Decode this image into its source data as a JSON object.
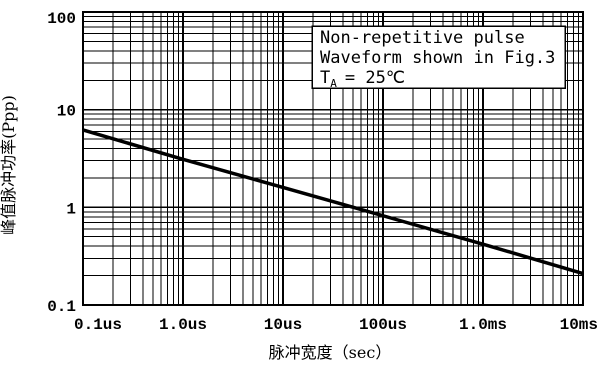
{
  "chart_data": {
    "type": "line",
    "x_scale": "log",
    "y_scale": "log",
    "xlabel": "脉冲宽度（sec）",
    "ylabel": "峰值脉冲功率(Ppp)",
    "xlim": [
      1e-07,
      0.01
    ],
    "ylim": [
      0.1,
      100
    ],
    "x_ticks": [
      {
        "value": 1e-07,
        "label": "0.1us"
      },
      {
        "value": 1e-06,
        "label": "1.0us"
      },
      {
        "value": 1e-05,
        "label": "10us"
      },
      {
        "value": 0.0001,
        "label": "100us"
      },
      {
        "value": 0.001,
        "label": "1.0ms"
      },
      {
        "value": 0.01,
        "label": "10ms"
      }
    ],
    "y_ticks": [
      {
        "value": 0.1,
        "label": "0.1"
      },
      {
        "value": 1,
        "label": "1"
      },
      {
        "value": 10,
        "label": "10"
      },
      {
        "value": 100,
        "label": "100"
      }
    ],
    "grid": true,
    "minor_grid": true,
    "series": [
      {
        "x": [
          1e-07,
          1e-06,
          1e-05,
          0.0001,
          0.001,
          0.01
        ],
        "y": [
          6.2,
          3.1,
          1.6,
          0.82,
          0.42,
          0.21
        ],
        "color": "#000000"
      }
    ],
    "annotation": {
      "placement": "top-right",
      "lines": [
        "Non-repetitive pulse",
        "Waveform shown in Fig.3"
      ],
      "condition": {
        "symbol": "T",
        "subscript": "A",
        "value": "= 25℃"
      }
    }
  }
}
